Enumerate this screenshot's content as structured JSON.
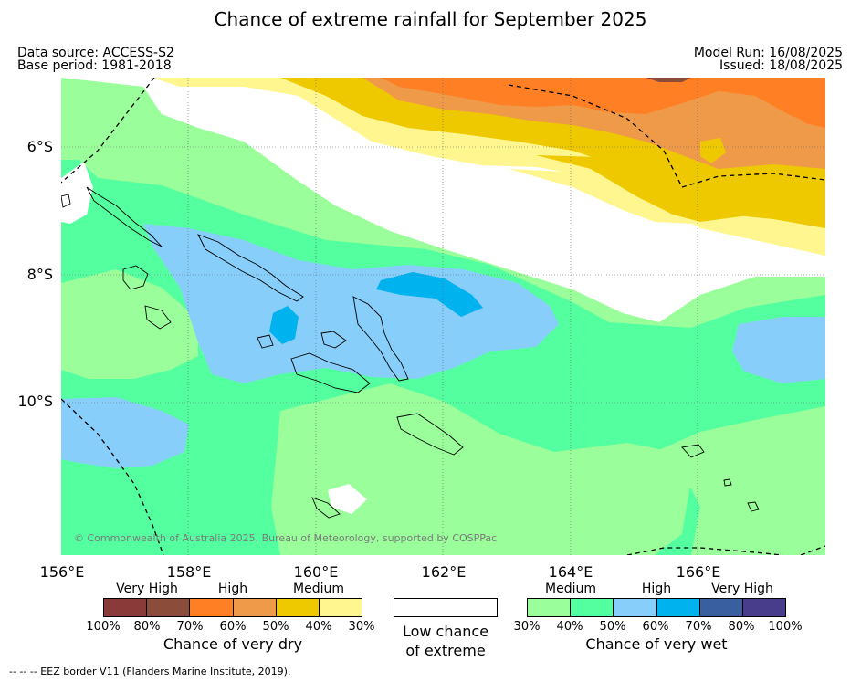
{
  "title": "Chance of extreme rainfall for September 2025",
  "meta": {
    "data_source": "Data source: ACCESS-S2",
    "base_period": "Base period: 1981-2018",
    "model_run": "Model Run: 16/08/2025",
    "issued": "Issued: 18/08/2025"
  },
  "map": {
    "latitude_labels": [
      "6°S",
      "8°S",
      "10°S"
    ],
    "longitude_labels": [
      "156°E",
      "158°E",
      "160°E",
      "162°E",
      "164°E",
      "166°E"
    ],
    "copyright": "© Commonwealth of Australia 2025, Bureau of Meteorology, supported by COSPPac",
    "colors": {
      "dry_medium_light": "#fff68f",
      "dry_medium": "#eec900",
      "dry_high_light": "#ee9a49",
      "dry_high": "#ff7f24",
      "dry_very_high_light": "#8b4c39",
      "neutral": "#ffffff",
      "wet_medium": "#9aff9a",
      "wet_medium_high": "#54ff9f",
      "wet_high": "#87cefa",
      "wet_high_strong": "#00b2ee",
      "coast": "#000000"
    }
  },
  "legend": {
    "dry": {
      "levels": [
        "Very High",
        "High",
        "Medium"
      ],
      "colors": [
        "#8b3a3a",
        "#8b4c39",
        "#ff7f24",
        "#ee9a49",
        "#eec900",
        "#fff68f"
      ],
      "ticks": [
        "100%",
        "80%",
        "70%",
        "60%",
        "50%",
        "40%",
        "30%"
      ],
      "caption": "Chance of very dry"
    },
    "low": {
      "line1": "Low chance",
      "line2": "of extreme"
    },
    "wet": {
      "levels": [
        "Medium",
        "High",
        "Very High"
      ],
      "colors": [
        "#9aff9a",
        "#54ff9f",
        "#87cefa",
        "#00b2ee",
        "#3a5fa0",
        "#483d8b"
      ],
      "ticks": [
        "30%",
        "40%",
        "50%",
        "60%",
        "70%",
        "80%",
        "100%"
      ],
      "caption": "Chance of very wet"
    }
  },
  "footer": "--  --  -- EEZ border V11 (Flanders Marine Institute, 2019)."
}
